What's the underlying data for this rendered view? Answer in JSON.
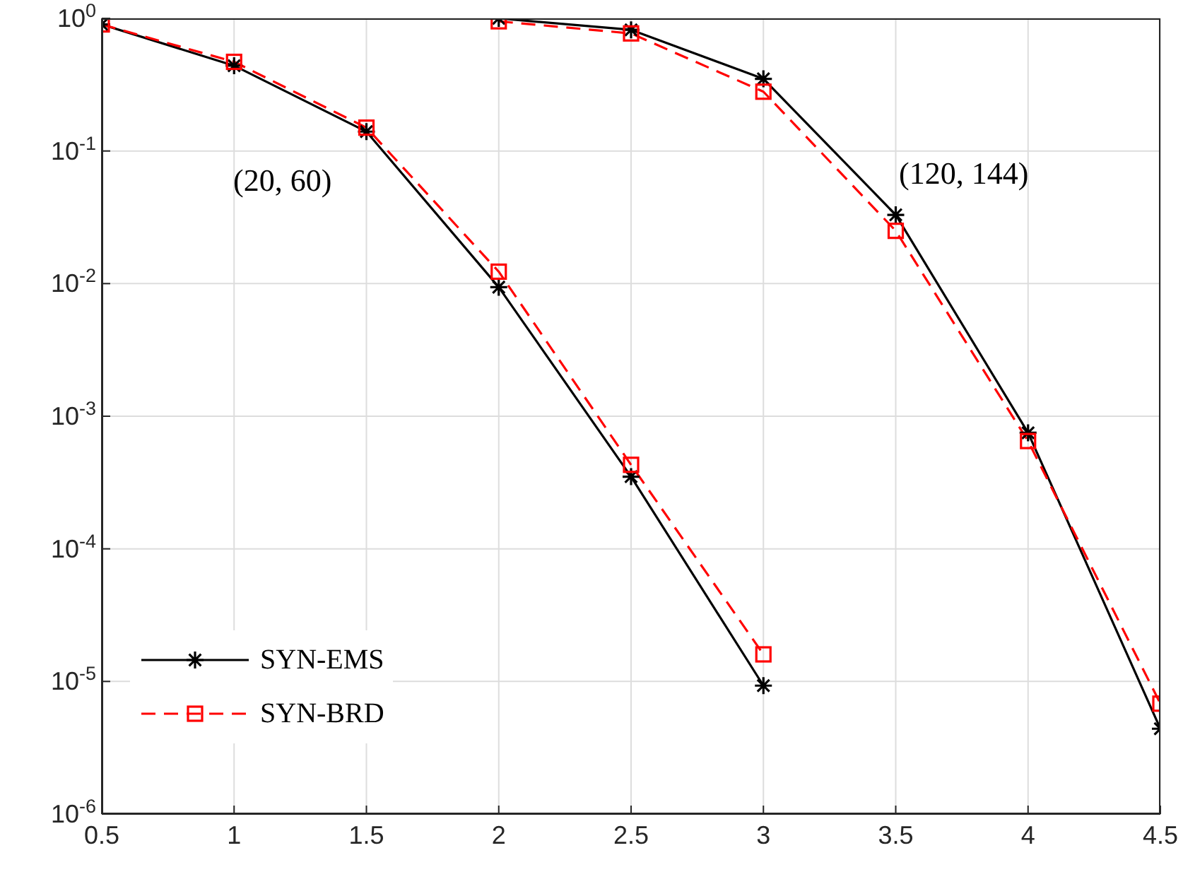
{
  "chart_data": {
    "type": "line",
    "series": [
      {
        "name": "SYN-EMS",
        "color": "#000000",
        "marker": "cross",
        "line_style": "solid",
        "x": [
          0.5,
          1,
          1.5,
          2,
          2.5,
          3
        ],
        "values": [
          0.9,
          0.44,
          0.14,
          0.0094,
          0.00035,
          9.3e-06
        ]
      },
      {
        "name": "SYN-BRD",
        "color": "#ff0000",
        "marker": "square",
        "line_style": "dashed",
        "x": [
          0.5,
          1,
          1.5,
          2,
          2.5,
          3
        ],
        "values": [
          0.9,
          0.47,
          0.15,
          0.0123,
          0.00043,
          1.6e-05
        ]
      },
      {
        "color": "#000000",
        "marker": "cross",
        "line_style": "solid",
        "x": [
          2,
          2.5,
          3,
          3.5,
          4,
          4.5
        ],
        "values": [
          1,
          0.82,
          0.35,
          0.033,
          0.00075,
          4.4e-06
        ]
      },
      {
        "color": "#ff0000",
        "marker": "square",
        "line_style": "dashed",
        "x": [
          2,
          2.5,
          3,
          3.5,
          4,
          4.5
        ],
        "values": [
          0.95,
          0.77,
          0.28,
          0.025,
          0.00065,
          6.8e-06
        ]
      }
    ],
    "xlim": [
      0.5,
      4.5
    ],
    "xticks": [
      0.5,
      1,
      1.5,
      2,
      2.5,
      3,
      3.5,
      4,
      4.5
    ],
    "ylim": [
      1e-06,
      1
    ],
    "yticks": [
      {
        "value": 1e-06,
        "label": "10$^{-6}$"
      },
      {
        "value": 1e-05,
        "label": "10$^{-5}$"
      },
      {
        "value": 0.0001,
        "label": "10$^{-4}$"
      },
      {
        "value": 0.001,
        "label": "10$^{-3}$"
      },
      {
        "value": 0.01,
        "label": "10$^{-2}$"
      },
      {
        "value": 0.1,
        "label": "10$^{-1}$"
      },
      {
        "value": 1,
        "label": "10$^{0}$"
      }
    ],
    "log": "y",
    "grid": true,
    "legend": "bottom left",
    "annotations": [
      "(20, 60)",
      "(120, 144)"
    ]
  }
}
